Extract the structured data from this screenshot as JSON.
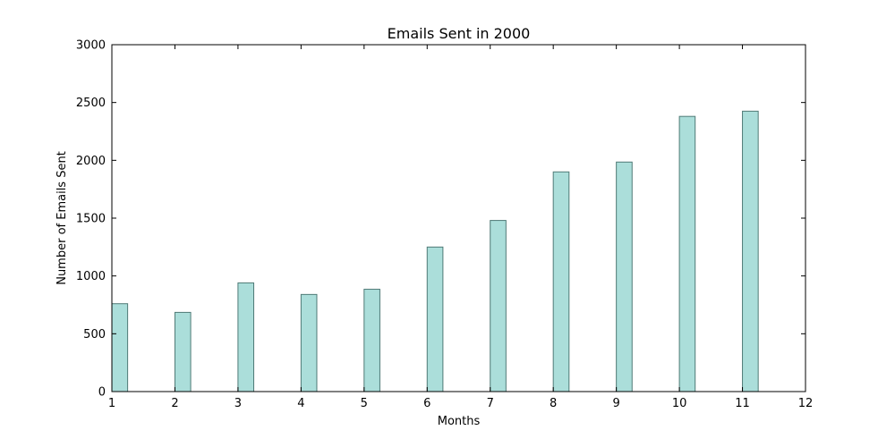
{
  "chart_data": {
    "type": "bar",
    "title": "Emails Sent in 2000",
    "xlabel": "Months",
    "ylabel": "Number of Emails Sent",
    "categories": [
      1,
      2,
      3,
      4,
      5,
      6,
      7,
      8,
      9,
      10,
      11
    ],
    "values": [
      760,
      685,
      940,
      840,
      885,
      1250,
      1480,
      1900,
      1985,
      2380,
      2425
    ],
    "xlim": [
      1,
      12
    ],
    "ylim": [
      0,
      3000
    ],
    "x_ticks": [
      1,
      2,
      3,
      4,
      5,
      6,
      7,
      8,
      9,
      10,
      11,
      12
    ],
    "y_ticks": [
      0,
      500,
      1000,
      1500,
      2000,
      2500,
      3000
    ],
    "grid": false,
    "legend": "none",
    "colors": {
      "bar_fill": "#abdeda",
      "bar_edge": "#4f7a76",
      "axes": "#000000"
    }
  }
}
